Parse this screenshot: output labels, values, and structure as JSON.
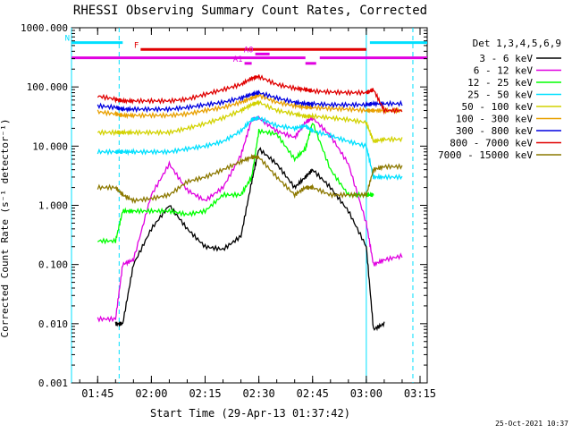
{
  "chart_data": {
    "type": "line",
    "title": "RHESSI Observing Summary Count Rates, Corrected",
    "xlabel": "Start Time (29-Apr-13 01:37:42)",
    "ylabel": "Corrected Count Rate (s⁻¹ detector⁻¹)",
    "y_scale": "log",
    "ylim": [
      0.001,
      1000
    ],
    "xlim": [
      "01:37:42",
      "03:17:00"
    ],
    "y_ticks": [
      "1000.000",
      "100.000",
      "10.000",
      "1.000",
      "0.100",
      "0.010",
      "0.001"
    ],
    "x_ticks": [
      "01:45",
      "02:00",
      "02:15",
      "02:30",
      "02:45",
      "03:00",
      "03:15"
    ],
    "legend_title": "Det 1,3,4,5,6,9",
    "legend_position": "right",
    "footer": "25-Oct-2021 10:37",
    "flags": [
      {
        "label": "N",
        "color": "#00e0ff",
        "segments": [
          [
            "01:37:42",
            "01:52:00"
          ],
          [
            "03:01:00",
            "03:17:00"
          ]
        ],
        "level": 560
      },
      {
        "label": "F",
        "color": "#e00000",
        "segments": [
          [
            "01:57:00",
            "03:00:00"
          ]
        ],
        "level": 430
      },
      {
        "label": "A0",
        "color": "#e000e0",
        "segments": [
          [
            "02:29:00",
            "02:33:00"
          ]
        ],
        "level": 360
      },
      {
        "label": "A1",
        "color": "#e000e0",
        "segments": [
          [
            "02:26:00",
            "02:28:00"
          ],
          [
            "02:43:00",
            "02:46:00"
          ]
        ],
        "level": 250
      },
      {
        "label": "",
        "color": "#e000e0",
        "segments": [
          [
            "01:37:42",
            "02:43:00"
          ],
          [
            "02:47:00",
            "03:17:00"
          ]
        ],
        "level": 310
      }
    ],
    "vlines": [
      {
        "time": "01:37:42",
        "color": "#00e0ff",
        "style": "solid"
      },
      {
        "time": "01:51:00",
        "color": "#00e0ff",
        "style": "dashed"
      },
      {
        "time": "03:00:00",
        "color": "#00e0ff",
        "style": "solid"
      },
      {
        "time": "03:13:00",
        "color": "#00e0ff",
        "style": "dashed"
      }
    ],
    "x_times": [
      "01:37:42",
      "01:45",
      "01:50",
      "01:52",
      "01:55",
      "02:00",
      "02:05",
      "02:10",
      "02:15",
      "02:20",
      "02:25",
      "02:28",
      "02:30",
      "02:35",
      "02:40",
      "02:43",
      "02:45",
      "02:50",
      "02:55",
      "03:00",
      "03:02",
      "03:05",
      "03:10",
      "03:17"
    ],
    "series": [
      {
        "name": "3 - 6 keV",
        "color": "#000000",
        "values": [
          null,
          null,
          0.01,
          0.01,
          0.1,
          0.4,
          1.0,
          0.4,
          0.2,
          0.18,
          0.3,
          2.5,
          9.0,
          5.0,
          2.0,
          3.0,
          4.0,
          2.0,
          0.8,
          0.2,
          0.008,
          0.01,
          null,
          null
        ]
      },
      {
        "name": "6 - 12 keV",
        "color": "#e000e0",
        "values": [
          null,
          0.012,
          0.012,
          0.1,
          0.12,
          1.5,
          5.0,
          1.8,
          1.2,
          2.0,
          7.0,
          28.0,
          30.0,
          18.0,
          14.0,
          25.0,
          30.0,
          15.0,
          5.0,
          0.5,
          0.1,
          0.12,
          0.14,
          null
        ]
      },
      {
        "name": "12 - 25 keV",
        "color": "#00ff00",
        "values": [
          null,
          0.25,
          0.25,
          0.8,
          0.8,
          0.8,
          0.8,
          0.7,
          0.8,
          1.5,
          1.5,
          3.0,
          18.0,
          16.0,
          6.0,
          9.0,
          25.0,
          4.0,
          1.5,
          1.5,
          1.5,
          null,
          null,
          null
        ]
      },
      {
        "name": "25 - 50 keV",
        "color": "#00e0ff",
        "values": [
          null,
          8.0,
          8.0,
          8.0,
          8.0,
          8.0,
          8.0,
          9.0,
          10.0,
          12.0,
          18.0,
          28.0,
          30.0,
          22.0,
          20.0,
          22.0,
          18.0,
          15.0,
          12.0,
          10.0,
          3.0,
          3.0,
          3.0,
          null
        ]
      },
      {
        "name": "50 - 100 keV",
        "color": "#d2d200",
        "values": [
          null,
          17.0,
          17.0,
          17.0,
          17.0,
          17.0,
          17.0,
          20.0,
          24.0,
          30.0,
          40.0,
          50.0,
          55.0,
          40.0,
          35.0,
          32.0,
          32.0,
          30.0,
          28.0,
          25.0,
          12.0,
          13.0,
          13.0,
          null
        ]
      },
      {
        "name": "100 - 300 keV",
        "color": "#e8a000",
        "values": [
          null,
          38.0,
          35.0,
          33.0,
          33.0,
          33.0,
          33.0,
          35.0,
          40.0,
          45.0,
          55.0,
          65.0,
          72.0,
          55.0,
          48.0,
          45.0,
          45.0,
          43.0,
          42.0,
          40.0,
          40.0,
          40.0,
          40.0,
          null
        ]
      },
      {
        "name": "300 - 800 keV",
        "color": "#0000e0",
        "values": [
          null,
          48.0,
          45.0,
          42.0,
          42.0,
          42.0,
          42.0,
          45.0,
          50.0,
          55.0,
          65.0,
          75.0,
          80.0,
          65.0,
          55.0,
          52.0,
          52.0,
          50.0,
          50.0,
          50.0,
          52.0,
          52.0,
          52.0,
          null
        ]
      },
      {
        "name": "800 - 7000 keV",
        "color": "#e00000",
        "values": [
          null,
          70.0,
          62.0,
          58.0,
          58.0,
          58.0,
          58.0,
          62.0,
          75.0,
          90.0,
          110.0,
          140.0,
          150.0,
          110.0,
          95.0,
          90.0,
          85.0,
          82.0,
          80.0,
          80.0,
          90.0,
          40.0,
          40.0,
          null
        ]
      },
      {
        "name": "7000 - 15000 keV",
        "color": "#8c7800",
        "values": [
          null,
          2.0,
          2.0,
          1.5,
          1.2,
          1.3,
          1.5,
          2.5,
          3.0,
          4.0,
          5.5,
          6.5,
          6.5,
          3.0,
          1.5,
          2.0,
          2.0,
          1.5,
          1.5,
          1.5,
          4.0,
          4.5,
          4.5,
          null
        ]
      }
    ]
  }
}
